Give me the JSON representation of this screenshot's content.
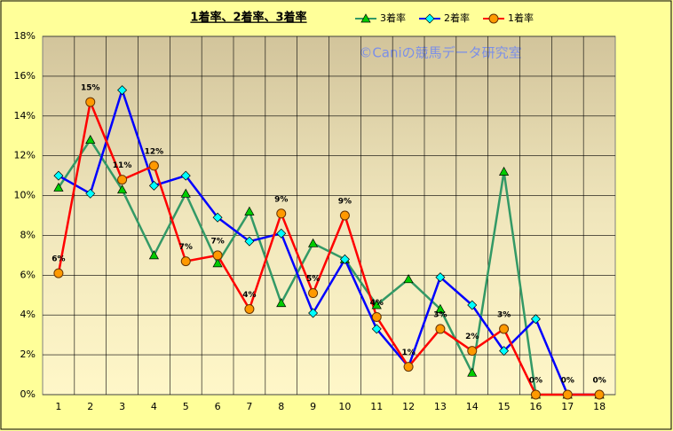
{
  "chart_data": {
    "type": "line",
    "title": "1着率、2着率、3着率",
    "watermark": "©Caniの競馬データ研究室",
    "categories": [
      "1",
      "2",
      "3",
      "4",
      "5",
      "6",
      "7",
      "8",
      "9",
      "10",
      "11",
      "12",
      "13",
      "14",
      "15",
      "16",
      "17",
      "18"
    ],
    "ylim": [
      0,
      18
    ],
    "yticks": [
      {
        "value": 0,
        "label": "0%"
      },
      {
        "value": 2,
        "label": "2%"
      },
      {
        "value": 4,
        "label": "4%"
      },
      {
        "value": 6,
        "label": "6%"
      },
      {
        "value": 8,
        "label": "8%"
      },
      {
        "value": 10,
        "label": "10%"
      },
      {
        "value": 12,
        "label": "12%"
      },
      {
        "value": 14,
        "label": "14%"
      },
      {
        "value": 16,
        "label": "16%"
      },
      {
        "value": 18,
        "label": "18%"
      }
    ],
    "grid": true,
    "legend": "top",
    "series": [
      {
        "name": "3着率",
        "color": "#339966",
        "marker": "triangle",
        "marker_color": "#00cc00",
        "values": [
          10.4,
          12.8,
          10.3,
          7.0,
          10.1,
          6.6,
          9.2,
          4.6,
          7.6,
          6.8,
          4.5,
          5.8,
          4.3,
          1.1,
          11.2,
          0,
          0,
          0
        ]
      },
      {
        "name": "2着率",
        "color": "#0000ff",
        "marker": "diamond",
        "marker_color": "#00ffff",
        "values": [
          11.0,
          10.1,
          15.3,
          10.5,
          11.0,
          8.9,
          7.7,
          8.1,
          4.1,
          6.8,
          3.3,
          1.4,
          5.9,
          4.5,
          2.2,
          3.8,
          0,
          0
        ]
      },
      {
        "name": "1着率",
        "color": "#ff0000",
        "marker": "circle",
        "marker_color": "#ff9900",
        "values": [
          6.1,
          14.7,
          10.8,
          11.5,
          6.7,
          7.0,
          4.3,
          9.1,
          5.1,
          9.0,
          3.9,
          1.4,
          3.3,
          2.2,
          3.3,
          0,
          0,
          0
        ],
        "value_labels": [
          "6%",
          "15%",
          "11%",
          "12%",
          "7%",
          "7%",
          "4%",
          "9%",
          "5%",
          "9%",
          "4%",
          "1%",
          "3%",
          "2%",
          "3%",
          "0%",
          "0%",
          "0%"
        ]
      }
    ]
  }
}
